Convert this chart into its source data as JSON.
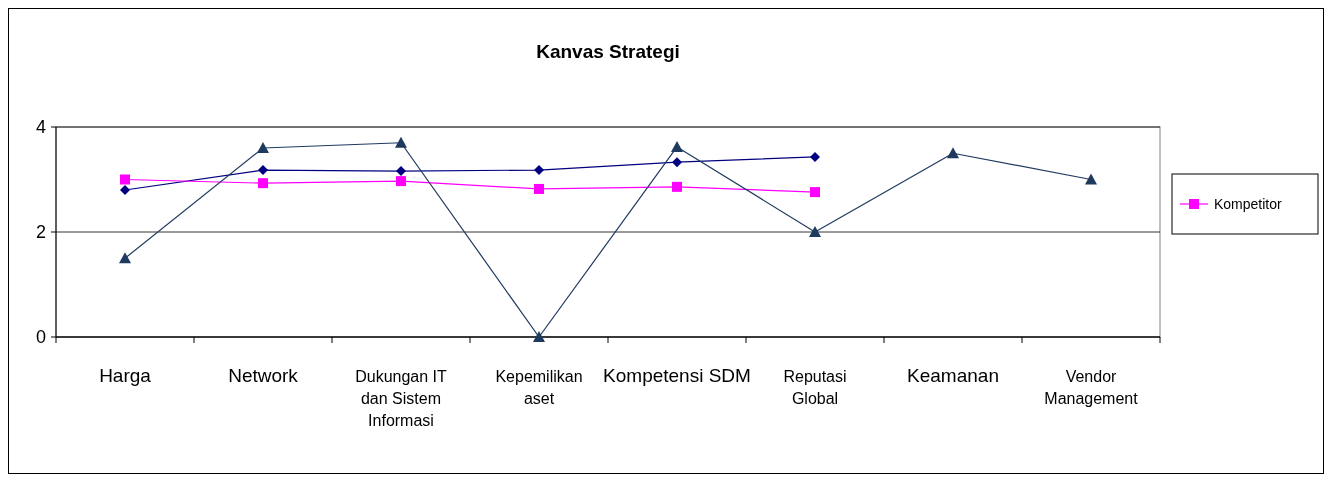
{
  "chart_data": {
    "type": "line",
    "title": "Kanvas Strategi",
    "categories": [
      "Harga",
      "Network",
      "Dukungan IT dan Sistem Informasi",
      "Kepemilikan aset",
      "Kompetensi SDM",
      "Reputasi Global",
      "Keamanan",
      "Vendor Management"
    ],
    "series": [
      {
        "color": "#000080",
        "marker": "diamond",
        "values": [
          2.8,
          3.18,
          3.16,
          3.18,
          3.33,
          3.43,
          null,
          null
        ]
      },
      {
        "name": "Kompetitor",
        "color": "#ff00ff",
        "marker": "square",
        "values": [
          3.0,
          2.93,
          2.97,
          2.82,
          2.86,
          2.76,
          null,
          null
        ]
      },
      {
        "color": "#1f3a5f",
        "marker": "triangle",
        "values": [
          1.5,
          3.6,
          3.7,
          0,
          3.62,
          2.0,
          3.5,
          3.0
        ]
      }
    ],
    "ylim": [
      0,
      4
    ],
    "yticks": [
      0,
      2,
      4
    ],
    "grid": "y",
    "legend": "right"
  }
}
